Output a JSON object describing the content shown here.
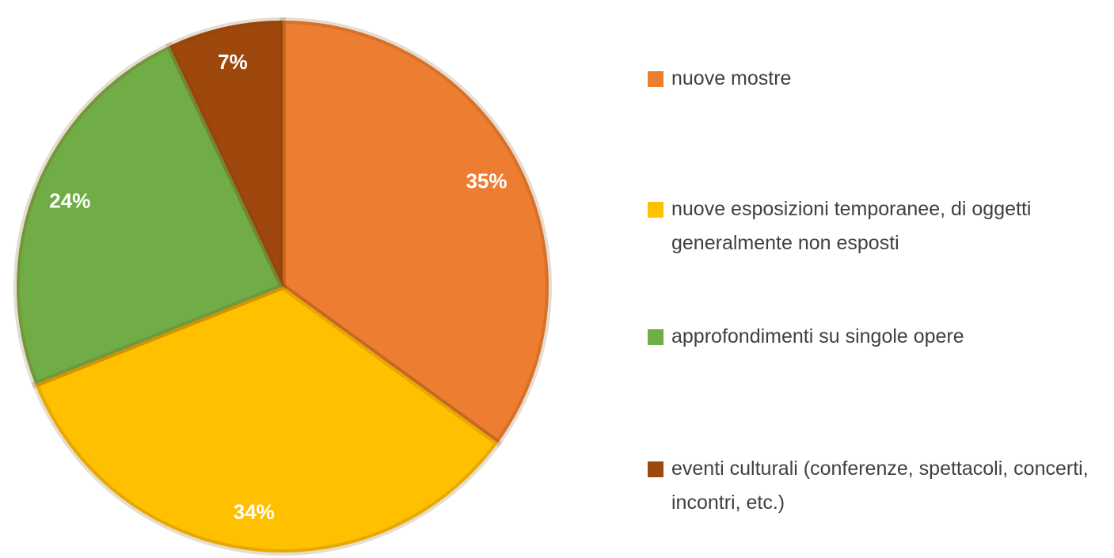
{
  "chart_data": {
    "type": "pie",
    "categories": [
      "nuove mostre",
      "nuove esposizioni temporanee, di oggetti generalmente non esposti",
      "approfondimenti su singole opere",
      "eventi culturali (conferenze, spettacoli, concerti, incontri, etc.)"
    ],
    "values": [
      35,
      34,
      24,
      7
    ],
    "value_labels": [
      "35%",
      "34%",
      "24%",
      "7%"
    ],
    "colors": [
      "#ed7d31",
      "#ffc000",
      "#70ad47",
      "#9e480e"
    ],
    "legend": "right"
  }
}
